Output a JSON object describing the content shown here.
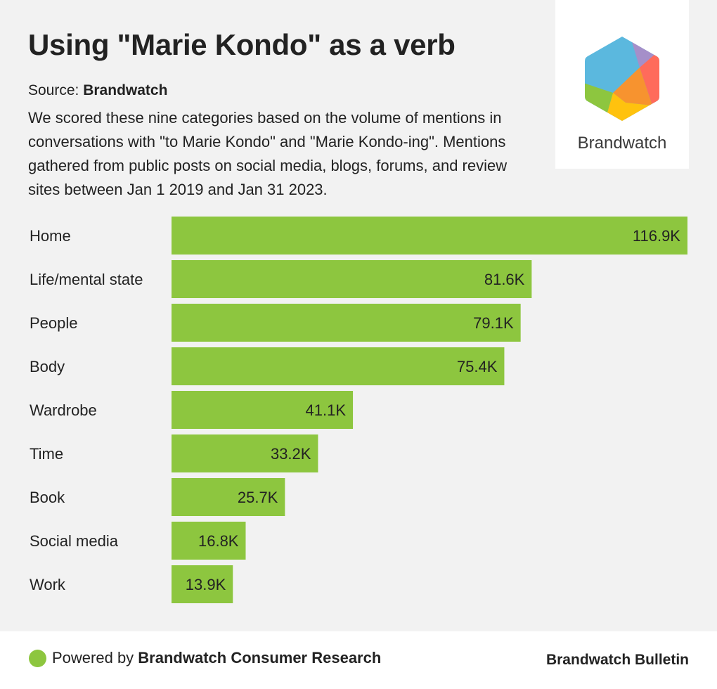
{
  "header": {
    "title": "Using \"Marie Kondo\" as a verb",
    "source_label": "Source: ",
    "source_name": "Brandwatch",
    "description": "We scored these nine categories based on the volume of mentions in conversations with \"to Marie Kondo\" and \"Marie Kondo-ing\". Mentions gathered from public posts on social media, blogs, forums, and review sites between Jan 1 2019 and Jan 31 2023."
  },
  "logo": {
    "wordmark": "Brandwatch",
    "colors": [
      "#5bb8de",
      "#a58fc9",
      "#ff6b5b",
      "#f7932f",
      "#ffc20e",
      "#8dc63f"
    ]
  },
  "chart_data": {
    "type": "bar",
    "orientation": "horizontal",
    "categories": [
      "Home",
      "Life/mental state",
      "People",
      "Body",
      "Wardrobe",
      "Time",
      "Book",
      "Social media",
      "Work"
    ],
    "values": [
      116.9,
      81.6,
      79.1,
      75.4,
      41.1,
      33.2,
      25.7,
      16.8,
      13.9
    ],
    "value_labels": [
      "116.9K",
      "81.6K",
      "79.1K",
      "75.4K",
      "41.1K",
      "33.2K",
      "25.7K",
      "16.8K",
      "13.9K"
    ],
    "unit": "K",
    "xlim": [
      0,
      116.9
    ],
    "bar_color": "#8dc63f",
    "grid": false
  },
  "footer": {
    "powered_prefix": "Powered by ",
    "powered_name": "Brandwatch Consumer Research",
    "right_label": "Brandwatch Bulletin",
    "dot_color": "#8dc63f"
  }
}
